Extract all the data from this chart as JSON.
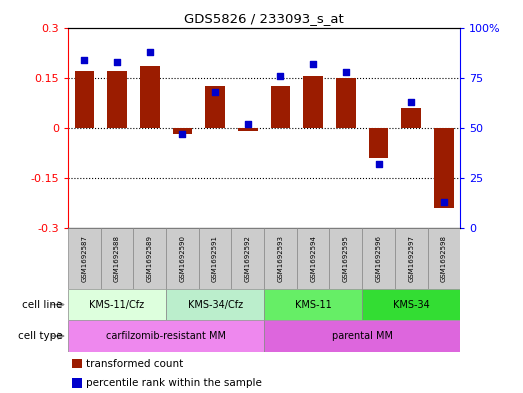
{
  "title": "GDS5826 / 233093_s_at",
  "samples": [
    "GSM1692587",
    "GSM1692588",
    "GSM1692589",
    "GSM1692590",
    "GSM1692591",
    "GSM1692592",
    "GSM1692593",
    "GSM1692594",
    "GSM1692595",
    "GSM1692596",
    "GSM1692597",
    "GSM1692598"
  ],
  "transformed_count": [
    0.17,
    0.17,
    0.185,
    -0.02,
    0.125,
    -0.01,
    0.125,
    0.155,
    0.148,
    -0.09,
    0.06,
    -0.24
  ],
  "percentile_rank": [
    84,
    83,
    88,
    47,
    68,
    52,
    76,
    82,
    78,
    32,
    63,
    13
  ],
  "bar_color": "#9B1C00",
  "dot_color": "#0000CC",
  "ylim_left": [
    -0.3,
    0.3
  ],
  "ylim_right": [
    0,
    100
  ],
  "yticks_left": [
    -0.3,
    -0.15,
    0,
    0.15,
    0.3
  ],
  "yticks_right": [
    0,
    25,
    50,
    75,
    100
  ],
  "ytick_labels_right": [
    "0",
    "25",
    "50",
    "75",
    "100%"
  ],
  "hlines": [
    0.15,
    0.0,
    -0.15
  ],
  "sample_bg_color": "#CCCCCC",
  "cell_line_groups": [
    {
      "label": "KMS-11/Cfz",
      "start": 0,
      "end": 3,
      "color": "#DDFFDD"
    },
    {
      "label": "KMS-34/Cfz",
      "start": 3,
      "end": 6,
      "color": "#BBEECC"
    },
    {
      "label": "KMS-11",
      "start": 6,
      "end": 9,
      "color": "#66EE66"
    },
    {
      "label": "KMS-34",
      "start": 9,
      "end": 12,
      "color": "#33DD33"
    }
  ],
  "cell_type_groups": [
    {
      "label": "carfilzomib-resistant MM",
      "start": 0,
      "end": 6,
      "color": "#EE88EE"
    },
    {
      "label": "parental MM",
      "start": 6,
      "end": 12,
      "color": "#DD66DD"
    }
  ],
  "legend_items": [
    {
      "color": "#9B1C00",
      "label": "transformed count"
    },
    {
      "color": "#0000CC",
      "label": "percentile rank within the sample"
    }
  ],
  "bar_width": 0.6
}
